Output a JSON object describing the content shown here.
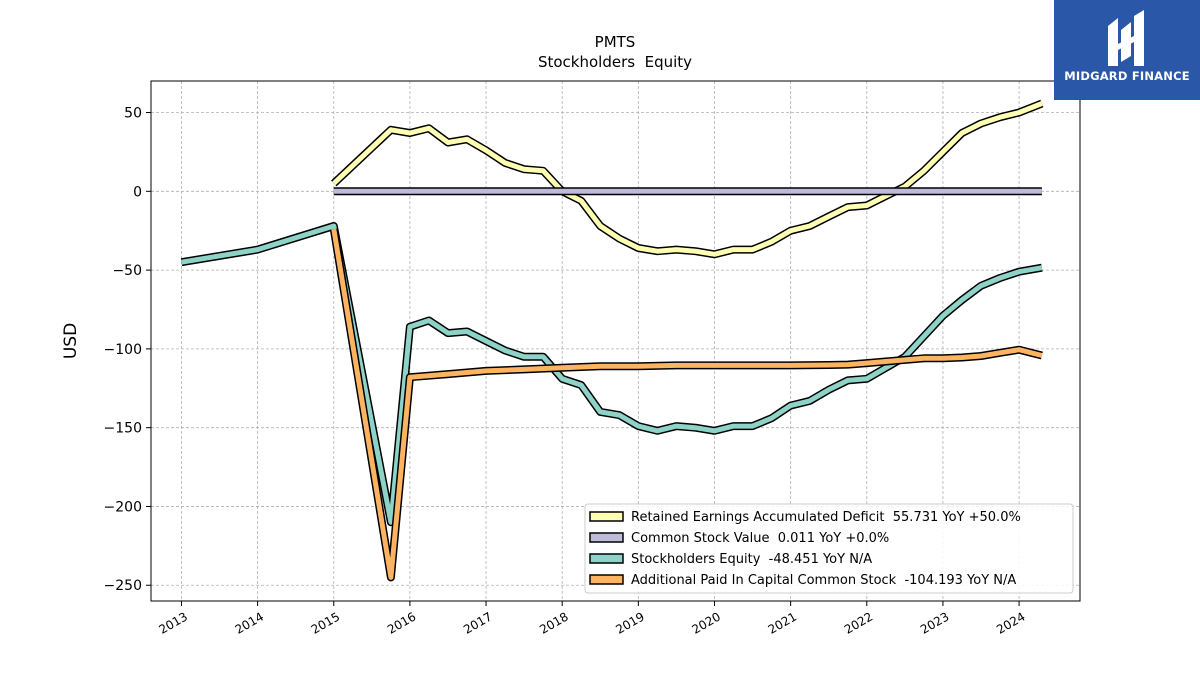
{
  "logo": {
    "text": "MIDGARD FINANCE"
  },
  "chart_data": {
    "type": "line",
    "title": "PMTS",
    "subtitle": "Stockholders  Equity",
    "ylabel": "USD",
    "xlabel": "",
    "xlim": [
      2012.6,
      2024.8
    ],
    "ylim": [
      -260,
      70
    ],
    "xticks": [
      2013,
      2014,
      2015,
      2016,
      2017,
      2018,
      2019,
      2020,
      2021,
      2022,
      2023,
      2024
    ],
    "yticks": [
      50,
      0,
      -50,
      -100,
      -150,
      -200,
      -250
    ],
    "ytick_labels": [
      "50",
      "0",
      "−50",
      "−100",
      "−150",
      "−200",
      "−250"
    ],
    "grid": true,
    "legend_position": "lower-right",
    "series": [
      {
        "name": "Retained Earnings Accumulated Deficit  55.731 YoY +50.0%",
        "color": "#ffffb3",
        "x": [
          2015.0,
          2015.75,
          2016.0,
          2016.25,
          2016.5,
          2016.75,
          2017.0,
          2017.25,
          2017.5,
          2017.75,
          2018.0,
          2018.25,
          2018.5,
          2018.75,
          2019.0,
          2019.25,
          2019.5,
          2019.75,
          2020.0,
          2020.25,
          2020.5,
          2020.75,
          2021.0,
          2021.25,
          2021.5,
          2021.75,
          2022.0,
          2022.25,
          2022.5,
          2022.75,
          2023.0,
          2023.25,
          2023.5,
          2023.75,
          2024.0,
          2024.3
        ],
        "y": [
          5,
          39,
          37,
          40,
          31,
          33,
          26,
          18,
          14,
          13,
          0,
          -6,
          -22,
          -30,
          -36,
          -38,
          -37,
          -38,
          -40,
          -37,
          -37,
          -32,
          -25,
          -22,
          -16,
          -10,
          -9,
          -3,
          3,
          13,
          25,
          37,
          43,
          47,
          50,
          55.731
        ]
      },
      {
        "name": "Common Stock Value  0.011 YoY +0.0%",
        "color": "#bebada",
        "x": [
          2015.0,
          2024.3
        ],
        "y": [
          0.011,
          0.011
        ]
      },
      {
        "name": "Stockholders Equity  -48.451 YoY N/A",
        "color": "#8dd3c7",
        "x": [
          2013.0,
          2014.0,
          2015.0,
          2015.75,
          2016.0,
          2016.25,
          2016.5,
          2016.75,
          2017.0,
          2017.25,
          2017.5,
          2017.75,
          2018.0,
          2018.25,
          2018.5,
          2018.75,
          2019.0,
          2019.25,
          2019.5,
          2019.75,
          2020.0,
          2020.25,
          2020.5,
          2020.75,
          2021.0,
          2021.25,
          2021.5,
          2021.75,
          2022.0,
          2022.25,
          2022.5,
          2022.75,
          2023.0,
          2023.25,
          2023.5,
          2023.75,
          2024.0,
          2024.3
        ],
        "y": [
          -45,
          -37,
          -22,
          -210,
          -86,
          -82,
          -90,
          -89,
          -95,
          -101,
          -105,
          -105,
          -119,
          -123,
          -140,
          -142,
          -149,
          -152,
          -149,
          -150,
          -152,
          -149,
          -149,
          -144,
          -136,
          -133,
          -126,
          -120,
          -119,
          -112,
          -105,
          -92,
          -79,
          -69,
          -60,
          -55,
          -51,
          -48.451
        ]
      },
      {
        "name": "Additional Paid In Capital Common Stock  -104.193 YoY N/A",
        "color": "#fdb462",
        "x": [
          2015.0,
          2015.75,
          2016.0,
          2016.5,
          2017.0,
          2017.5,
          2018.0,
          2018.5,
          2019.0,
          2019.5,
          2020.0,
          2020.5,
          2021.0,
          2021.5,
          2021.75,
          2022.0,
          2022.25,
          2022.5,
          2022.75,
          2023.0,
          2023.25,
          2023.5,
          2023.75,
          2024.0,
          2024.3
        ],
        "y": [
          -24,
          -245,
          -118,
          -116,
          -114,
          -113,
          -112,
          -111,
          -111,
          -110.5,
          -110.5,
          -110.5,
          -110.5,
          -110.2,
          -110,
          -109,
          -108,
          -107,
          -106,
          -106,
          -105.5,
          -104.5,
          -102.5,
          -100.5,
          -104.193
        ]
      }
    ]
  }
}
